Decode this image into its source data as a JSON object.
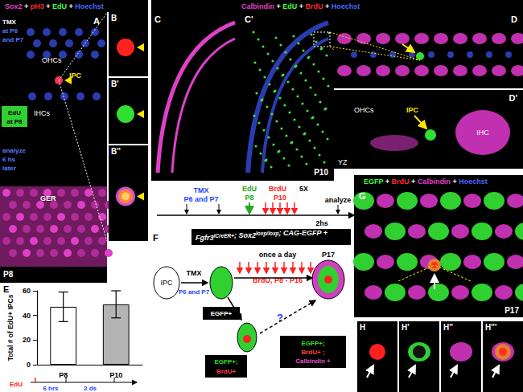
{
  "chart_data": {
    "type": "bar",
    "panel_label": "E",
    "categories": [
      "P8",
      "P10"
    ],
    "values": [
      47,
      49
    ],
    "errors": [
      12,
      11
    ],
    "colors": [
      "#ffffff",
      "#b4b4b4"
    ],
    "y_label": "Total # of EdU+ IPCs",
    "ylim": [
      0,
      60
    ],
    "yticks": [
      0,
      20,
      40,
      60
    ],
    "grid": false,
    "timeline": {
      "start": "EdU",
      "gap1": "6 hrs",
      "gap2": "2 ds"
    }
  },
  "panel_A": {
    "label": "A",
    "stain": [
      {
        "text": "Sox2",
        "color": "#e040c8"
      },
      {
        "text": " + ",
        "color": "#ffffff"
      },
      {
        "text": "pH3",
        "color": "#ff2a2a"
      },
      {
        "text": " + ",
        "color": "#ffffff"
      },
      {
        "text": "EdU",
        "color": "#40ff40"
      },
      {
        "text": " + ",
        "color": "#ffffff"
      },
      {
        "text": "Hoechst",
        "color": "#4a66ff"
      }
    ],
    "tmx": [
      "TMX",
      "at P6",
      "and P7"
    ],
    "edu": [
      "EdU",
      "at P8"
    ],
    "analyze": [
      "analyze",
      "6 hs",
      "later"
    ],
    "ohcs": "OHCs",
    "ihcs": "IHCs",
    "ipc": "IPC",
    "ger": "GER",
    "age": "P8"
  },
  "panel_B": {
    "labels": [
      "B",
      "B'",
      "B''"
    ]
  },
  "panel_C": {
    "labels": [
      "C",
      "C'"
    ],
    "stain": [
      {
        "text": "Calbindin",
        "color": "#e040c8"
      },
      {
        "text": " + ",
        "color": "#ffffff"
      },
      {
        "text": "EdU",
        "color": "#40ff40"
      },
      {
        "text": " + ",
        "color": "#ffffff"
      },
      {
        "text": "BrdU",
        "color": "#ff2a2a"
      },
      {
        "text": " + ",
        "color": "#ffffff"
      },
      {
        "text": "Hoechst",
        "color": "#4a66ff"
      }
    ],
    "age": "P10",
    "timeline": {
      "tmx": "TMX",
      "tmx_days": "P6 and P7",
      "edu": "EdU",
      "edu_day": "P8",
      "brdu": "BrdU",
      "brdu_day": "P10",
      "brdu_times": "5X",
      "gap": "2hs",
      "analyze": "analyze"
    }
  },
  "panel_D": {
    "labels": [
      "D",
      "D'"
    ],
    "yz": "YZ",
    "ipc": "IPC",
    "ihc": "IHC",
    "ohcs": "OHCs"
  },
  "panel_F": {
    "label": "F",
    "genotype": [
      {
        "text": "Fgfr3",
        "sup": false
      },
      {
        "text": "iCreER+",
        "sup": true
      },
      {
        "text": "; Sox2",
        "sup": false
      },
      {
        "text": "loxp/loxp",
        "sup": true
      },
      {
        "text": "; CAG-EGFP +",
        "sup": false
      }
    ],
    "ipc": "IPC",
    "tmx": "TMX",
    "tmx_days": "P6 and P7",
    "egfp": "EGFP+",
    "once": "once a day",
    "brdu": "BrdU, P8 - P16",
    "age": "P17",
    "question": "?",
    "double": [
      "EGFP+;",
      "BrdU+"
    ],
    "triple": [
      "EGFP+;",
      "BrdU+ ;",
      "Calbindin +"
    ]
  },
  "panel_G": {
    "label": "G",
    "stain": [
      {
        "text": "EGFP",
        "color": "#40ff40"
      },
      {
        "text": " + ",
        "color": "#ffffff"
      },
      {
        "text": "BrdU",
        "color": "#ff2a2a"
      },
      {
        "text": " + ",
        "color": "#ffffff"
      },
      {
        "text": "Calbindin",
        "color": "#e040c8"
      },
      {
        "text": " + ",
        "color": "#ffffff"
      },
      {
        "text": "Hoechst",
        "color": "#4a66ff"
      }
    ],
    "age": "P17"
  },
  "panel_H": {
    "labels": [
      "H",
      "H'",
      "H''",
      "H'''"
    ]
  }
}
